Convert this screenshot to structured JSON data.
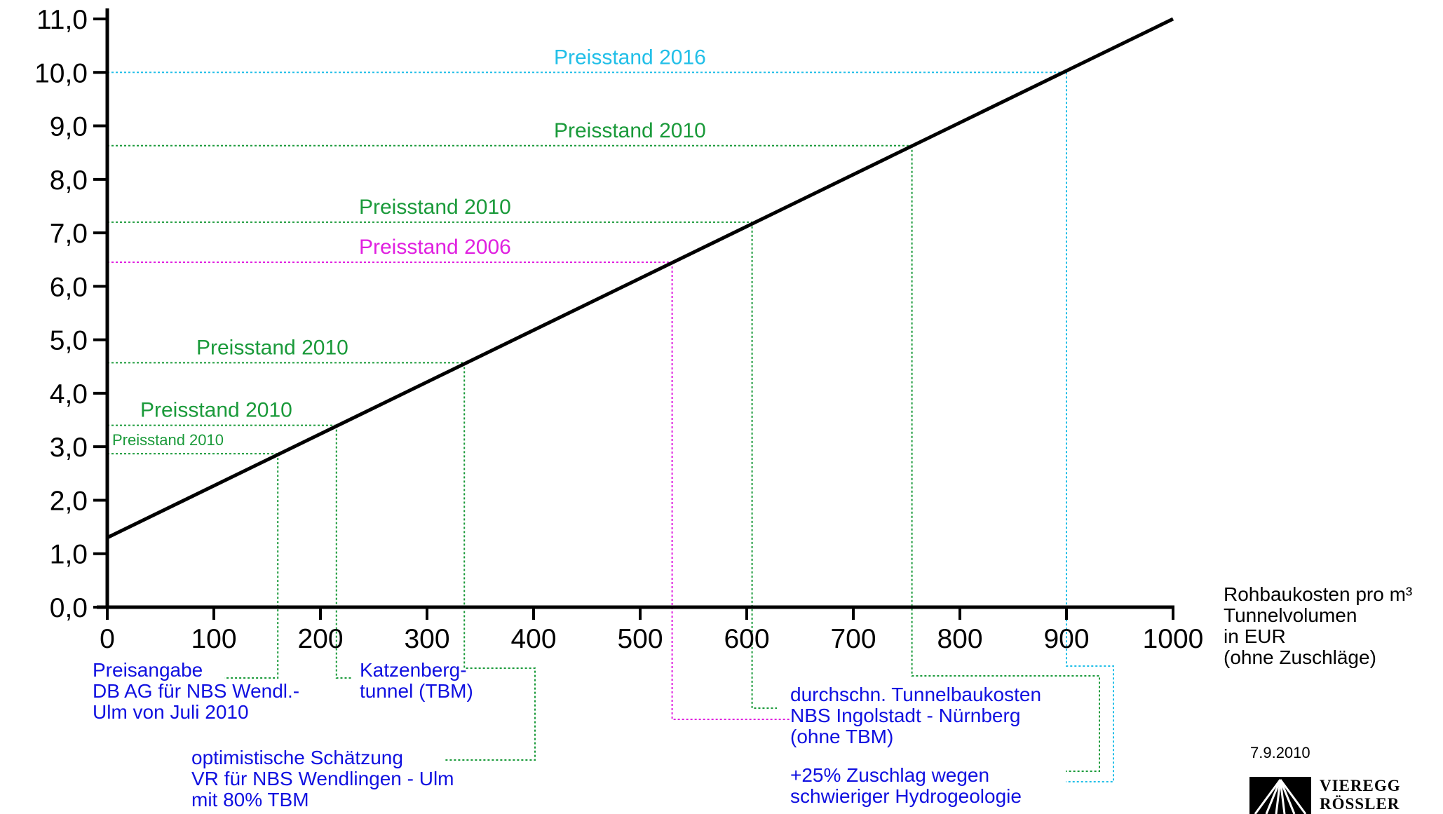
{
  "chart_data": {
    "type": "line",
    "xlim": [
      0,
      1000
    ],
    "ylim": [
      0,
      11
    ],
    "x_ticks": [
      "0",
      "100",
      "200",
      "300",
      "400",
      "500",
      "600",
      "700",
      "800",
      "900",
      "1000"
    ],
    "y_ticks": [
      "0,0",
      "1,0",
      "2,0",
      "3,0",
      "4,0",
      "5,0",
      "6,0",
      "7,0",
      "8,0",
      "9,0",
      "10,0",
      "11,0"
    ],
    "xlabel_lines": [
      "Rohbaukosten pro m³",
      "Tunnelvolumen",
      "in EUR",
      "(ohne Zuschläge)"
    ],
    "series": [
      {
        "x": [
          0,
          1000
        ],
        "y": [
          1.3,
          11.0
        ]
      }
    ],
    "markers": [
      {
        "x": 160,
        "y": 2.87,
        "level_label": "Preisstand 2010",
        "color": "#1a9a3a",
        "small": true,
        "note": [
          "Preisangabe",
          "DB AG für NBS Wendl.-",
          "Ulm von Juli 2010"
        ]
      },
      {
        "x": 215,
        "y": 3.4,
        "level_label": "Preisstand 2010",
        "color": "#1a9a3a",
        "note": [
          "Katzenberg-",
          "tunnel (TBM)"
        ]
      },
      {
        "x": 335,
        "y": 4.57,
        "level_label": "Preisstand 2010",
        "color": "#1a9a3a",
        "note": [
          "optimistische Schätzung",
          "VR für NBS Wendlingen - Ulm",
          "mit 80% TBM"
        ]
      },
      {
        "x": 530,
        "y": 6.45,
        "level_label": "Preisstand 2006",
        "color": "#e020e0",
        "note": []
      },
      {
        "x": 605,
        "y": 7.2,
        "level_label": "Preisstand 2010",
        "color": "#1a9a3a",
        "note": [
          "durchschn. Tunnelbaukosten",
          "NBS Ingolstadt - Nürnberg",
          "(ohne TBM)"
        ]
      },
      {
        "x": 755,
        "y": 8.63,
        "level_label": "Preisstand 2010",
        "color": "#1a9a3a",
        "note": [
          "+25% Zuschlag wegen",
          "schwieriger Hydrogeologie"
        ]
      },
      {
        "x": 900,
        "y": 10.0,
        "level_label": "Preisstand 2016",
        "color": "#22bfe8",
        "note": []
      }
    ],
    "note_color": "#1010e0"
  },
  "footer": {
    "date": "7.9.2010",
    "logo_line1": "VIEREGG",
    "logo_line2": "RÖSSLER"
  }
}
